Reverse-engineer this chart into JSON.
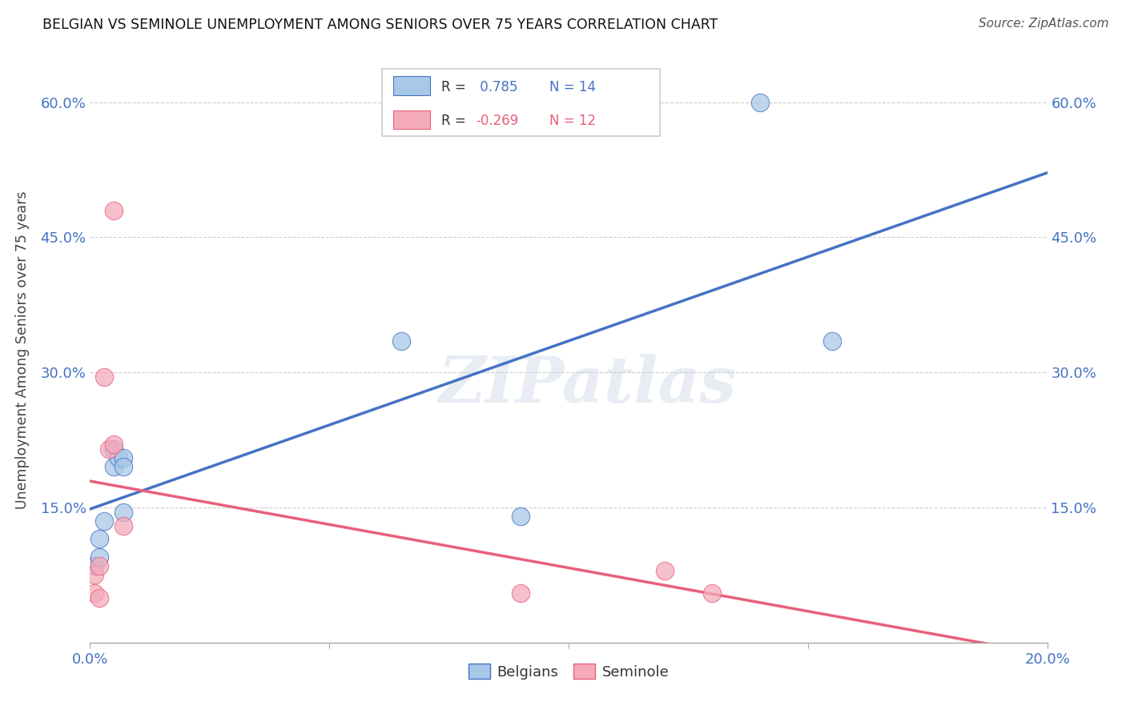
{
  "title": "BELGIAN VS SEMINOLE UNEMPLOYMENT AMONG SENIORS OVER 75 YEARS CORRELATION CHART",
  "source": "Source: ZipAtlas.com",
  "ylabel": "Unemployment Among Seniors over 75 years",
  "xlim": [
    0.0,
    0.2
  ],
  "ylim": [
    0.0,
    0.65
  ],
  "xticks": [
    0.0,
    0.05,
    0.1,
    0.15,
    0.2
  ],
  "yticks": [
    0.15,
    0.3,
    0.45,
    0.6
  ],
  "ytick_labels": [
    "15.0%",
    "30.0%",
    "45.0%",
    "60.0%"
  ],
  "xtick_labels": [
    "0.0%",
    "",
    "",
    "",
    "20.0%"
  ],
  "belgian_color": "#a8c8e8",
  "seminole_color": "#f4aabb",
  "belgian_line_color": "#4472c4",
  "seminole_line_color": "#e8607a",
  "belgian_R": 0.785,
  "belgian_N": 14,
  "seminole_R": -0.269,
  "seminole_N": 12,
  "watermark": "ZIPatlas",
  "belgian_x": [
    0.001,
    0.002,
    0.002,
    0.003,
    0.005,
    0.005,
    0.006,
    0.007,
    0.007,
    0.007,
    0.065,
    0.09,
    0.14,
    0.155
  ],
  "belgian_y": [
    0.085,
    0.095,
    0.115,
    0.135,
    0.195,
    0.215,
    0.205,
    0.205,
    0.195,
    0.145,
    0.335,
    0.14,
    0.6,
    0.335
  ],
  "seminole_x": [
    0.001,
    0.001,
    0.002,
    0.002,
    0.003,
    0.004,
    0.005,
    0.005,
    0.007,
    0.09,
    0.12,
    0.13
  ],
  "seminole_y": [
    0.055,
    0.075,
    0.085,
    0.05,
    0.295,
    0.215,
    0.22,
    0.48,
    0.13,
    0.055,
    0.08,
    0.055
  ],
  "background_color": "#ffffff",
  "grid_color": "#cccccc"
}
